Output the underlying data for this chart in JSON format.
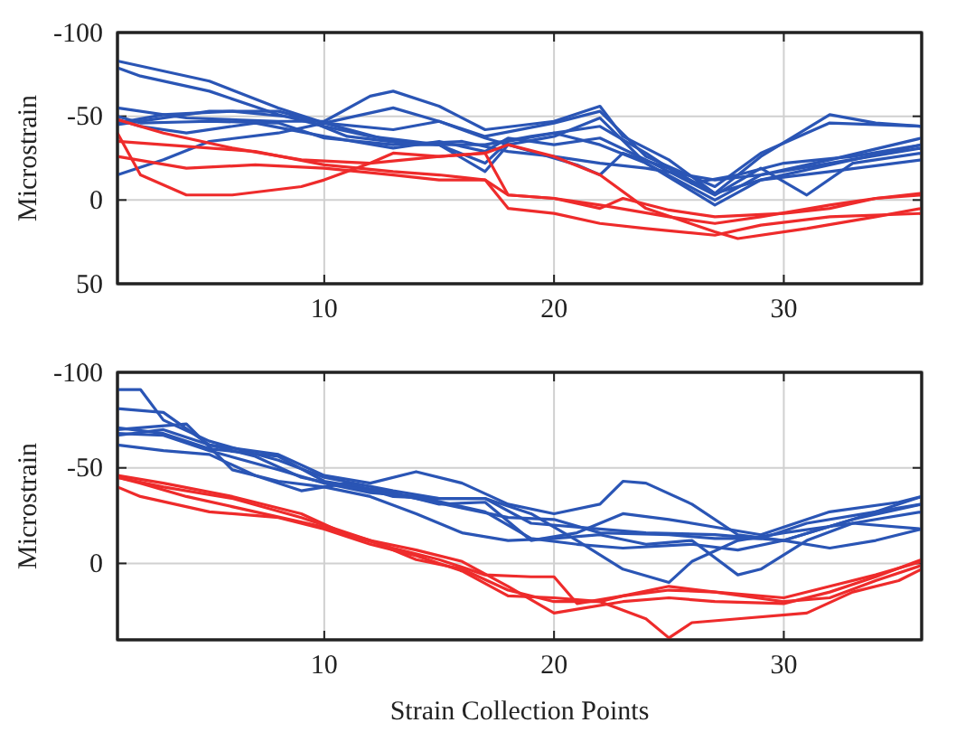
{
  "chart_data": [
    {
      "type": "line",
      "ylabel": "Microstrain",
      "xlim": [
        1,
        36
      ],
      "xticks": [
        10,
        20,
        30
      ],
      "ylim": [
        50,
        -100
      ],
      "yticks": [
        -100,
        -50,
        0,
        50
      ],
      "grid": true,
      "series": [
        {
          "color": "#2a55b5",
          "x": [
            1,
            5,
            8,
            10,
            13,
            15,
            17,
            18,
            20,
            22,
            24,
            27,
            29,
            32,
            36
          ],
          "values": [
            -83,
            -71,
            -55,
            -46,
            -35,
            -33,
            -22,
            -35,
            -40,
            -33,
            -22,
            0,
            -15,
            -22,
            -31
          ]
        },
        {
          "color": "#2a55b5",
          "x": [
            1,
            2,
            5,
            8,
            10,
            12,
            15,
            17,
            18,
            20,
            22,
            24,
            27,
            29,
            32,
            36
          ],
          "values": [
            -79,
            -74,
            -65,
            -51,
            -44,
            -38,
            -33,
            -17,
            -33,
            -38,
            -49,
            -22,
            3,
            -12,
            -17,
            -24
          ]
        },
        {
          "color": "#2a55b5",
          "x": [
            1,
            4,
            8,
            10,
            12,
            13,
            15,
            17,
            20,
            22,
            23,
            25,
            27,
            29,
            32,
            34,
            36
          ],
          "values": [
            -55,
            -49,
            -47,
            -47,
            -62,
            -65,
            -56,
            -42,
            -47,
            -56,
            -38,
            -24,
            -4,
            -26,
            -51,
            -46,
            -44
          ]
        },
        {
          "color": "#2a55b5",
          "x": [
            1,
            5,
            8,
            10,
            13,
            15,
            17,
            20,
            22,
            24,
            27,
            29,
            32,
            36
          ],
          "values": [
            -45,
            -53,
            -53,
            -46,
            -55,
            -47,
            -38,
            -46,
            -53,
            -26,
            -8,
            -28,
            -46,
            -44
          ]
        },
        {
          "color": "#2a55b5",
          "x": [
            1,
            3,
            5,
            8,
            10,
            13,
            15,
            17,
            19,
            21,
            22,
            23,
            25,
            27,
            29,
            32,
            36
          ],
          "values": [
            -15,
            -24,
            -35,
            -40,
            -46,
            -42,
            -47,
            -37,
            -29,
            -21,
            -15,
            -28,
            -19,
            -4,
            -12,
            -21,
            -33
          ]
        },
        {
          "color": "#2a55b5",
          "x": [
            1,
            2,
            4,
            7,
            10,
            13,
            15,
            17,
            18,
            20,
            22,
            24,
            27,
            29,
            31,
            33,
            36
          ],
          "values": [
            -48,
            -44,
            -40,
            -46,
            -38,
            -31,
            -35,
            -29,
            -37,
            -33,
            -37,
            -24,
            -3,
            -19,
            -3,
            -22,
            -28
          ]
        },
        {
          "color": "#2a55b5",
          "x": [
            1,
            2,
            5,
            8,
            10,
            13,
            16,
            18,
            20,
            22,
            24,
            27,
            29,
            32,
            36
          ],
          "values": [
            -50,
            -46,
            -47,
            -46,
            -37,
            -33,
            -35,
            -29,
            -26,
            -22,
            -19,
            -12,
            -15,
            -24,
            -37
          ]
        },
        {
          "color": "#2a55b5",
          "x": [
            1,
            3,
            6,
            9,
            11,
            14,
            17,
            19,
            22,
            24,
            26,
            28,
            30,
            33,
            36
          ],
          "values": [
            -46,
            -51,
            -53,
            -49,
            -38,
            -33,
            -33,
            -38,
            -44,
            -28,
            -10,
            -15,
            -22,
            -26,
            -33
          ]
        },
        {
          "color": "#ee2b2b",
          "x": [
            1,
            3,
            6,
            9,
            12,
            15,
            17,
            18,
            20,
            22,
            24,
            27,
            28,
            31,
            34,
            36
          ],
          "values": [
            -48,
            -40,
            -31,
            -24,
            -22,
            -26,
            -28,
            -33,
            -26,
            -15,
            5,
            19,
            23,
            17,
            10,
            5
          ]
        },
        {
          "color": "#ee2b2b",
          "x": [
            1,
            3,
            7,
            10,
            13,
            15,
            17,
            18,
            20,
            22,
            23,
            25,
            27,
            30,
            32,
            34,
            36
          ],
          "values": [
            -35,
            -33,
            -29,
            -21,
            -17,
            -15,
            -12,
            -3,
            -1,
            5,
            -1,
            6,
            10,
            8,
            5,
            -1,
            -4
          ]
        },
        {
          "color": "#ee2b2b",
          "x": [
            1,
            4,
            7,
            10,
            13,
            15,
            17,
            18,
            20,
            22,
            24,
            27,
            29,
            32,
            36
          ],
          "values": [
            -26,
            -19,
            -21,
            -19,
            -15,
            -12,
            -12,
            5,
            8,
            14,
            17,
            21,
            15,
            10,
            8
          ]
        },
        {
          "color": "#ee2b2b",
          "x": [
            1,
            2,
            4,
            6,
            9,
            10,
            12,
            13,
            15,
            17,
            18,
            20,
            22,
            25,
            27,
            29,
            32,
            34,
            36
          ],
          "values": [
            -40,
            -15,
            -3,
            -3,
            -8,
            -12,
            -22,
            -28,
            -26,
            -28,
            -3,
            -1,
            3,
            10,
            14,
            10,
            3,
            -1,
            -3
          ]
        }
      ]
    },
    {
      "type": "line",
      "xlabel": "Strain Collection Points",
      "ylabel": "Microstrain",
      "xlim": [
        1,
        36
      ],
      "xticks": [
        10,
        20,
        30
      ],
      "ylim": [
        40,
        -100
      ],
      "yticks": [
        -100,
        -50,
        0
      ],
      "grid": true,
      "series": [
        {
          "color": "#2a55b5",
          "x": [
            1,
            2,
            3,
            5,
            8,
            10,
            13,
            15,
            17,
            19,
            22,
            24,
            27,
            30,
            33,
            36
          ],
          "values": [
            -91,
            -91,
            -75,
            -64,
            -54,
            -45,
            -38,
            -34,
            -34,
            -21,
            -18,
            -16,
            -15,
            -12,
            -23,
            -31
          ]
        },
        {
          "color": "#2a55b5",
          "x": [
            1,
            3,
            5,
            8,
            10,
            12,
            14,
            16,
            18,
            20,
            22,
            23,
            24,
            26,
            28,
            30,
            33,
            36
          ],
          "values": [
            -81,
            -79,
            -62,
            -57,
            -46,
            -42,
            -48,
            -42,
            -31,
            -26,
            -31,
            -43,
            -42,
            -31,
            -15,
            -12,
            -23,
            -35
          ]
        },
        {
          "color": "#2a55b5",
          "x": [
            1,
            4,
            6,
            8,
            10,
            12,
            14,
            16,
            18,
            20,
            22,
            24,
            26,
            28,
            29,
            31,
            33,
            36
          ],
          "values": [
            -70,
            -73,
            -49,
            -43,
            -40,
            -35,
            -26,
            -16,
            -12,
            -13,
            -15,
            -10,
            -12,
            6,
            3,
            -12,
            -21,
            -27
          ]
        },
        {
          "color": "#2a55b5",
          "x": [
            1,
            3,
            5,
            7,
            9,
            11,
            13,
            15,
            17,
            19,
            21,
            23,
            25,
            26,
            28,
            30,
            33,
            36
          ],
          "values": [
            -62,
            -59,
            -57,
            -46,
            -38,
            -42,
            -35,
            -34,
            -34,
            -26,
            -12,
            3,
            10,
            -1,
            -12,
            -16,
            -21,
            -18
          ]
        },
        {
          "color": "#2a55b5",
          "x": [
            1,
            3,
            5,
            8,
            10,
            13,
            15,
            17,
            19,
            21,
            23,
            25,
            27,
            29,
            32,
            35,
            36
          ],
          "values": [
            -71,
            -68,
            -60,
            -56,
            -43,
            -37,
            -31,
            -32,
            -12,
            -16,
            -26,
            -23,
            -19,
            -15,
            -27,
            -32,
            -35
          ]
        },
        {
          "color": "#2a55b5",
          "x": [
            1,
            3,
            5,
            8,
            10,
            12,
            14,
            17,
            19,
            21,
            23,
            26,
            28,
            30,
            32,
            34,
            36
          ],
          "values": [
            -68,
            -67,
            -59,
            -49,
            -42,
            -37,
            -35,
            -27,
            -13,
            -10,
            -8,
            -10,
            -7,
            -12,
            -8,
            -12,
            -18
          ]
        },
        {
          "color": "#2a55b5",
          "x": [
            1,
            3,
            5,
            7,
            9,
            11,
            14,
            16,
            18,
            20,
            22,
            25,
            27,
            29,
            31,
            34,
            36
          ],
          "values": [
            -67,
            -70,
            -62,
            -56,
            -45,
            -40,
            -34,
            -29,
            -24,
            -23,
            -16,
            -15,
            -13,
            -13,
            -21,
            -27,
            -31
          ]
        },
        {
          "color": "#ee2b2b",
          "x": [
            1,
            3,
            6,
            9,
            11,
            13,
            15,
            17,
            19,
            20,
            21,
            23,
            25,
            27,
            30,
            32,
            34,
            36
          ],
          "values": [
            -46,
            -42,
            -35,
            -26,
            -15,
            -8,
            -2,
            6,
            7,
            7,
            21,
            17,
            14,
            15,
            18,
            12,
            6,
            -1
          ]
        },
        {
          "color": "#ee2b2b",
          "x": [
            1,
            3,
            6,
            9,
            12,
            14,
            16,
            18,
            20,
            22,
            23,
            25,
            27,
            30,
            32,
            34,
            36
          ],
          "values": [
            -45,
            -40,
            -34,
            -24,
            -12,
            -2,
            3,
            14,
            20,
            20,
            17,
            12,
            15,
            20,
            18,
            9,
            1
          ]
        },
        {
          "color": "#ee2b2b",
          "x": [
            1,
            2,
            4,
            7,
            10,
            12,
            14,
            16,
            18,
            20,
            21,
            23,
            25,
            27,
            30,
            32,
            34,
            36
          ],
          "values": [
            -45,
            -42,
            -35,
            -27,
            -19,
            -12,
            -7,
            -1,
            12,
            26,
            24,
            20,
            18,
            20,
            21,
            15,
            7,
            -2
          ]
        },
        {
          "color": "#ee2b2b",
          "x": [
            1,
            2,
            5,
            8,
            10,
            12,
            14,
            16,
            18,
            20,
            22,
            24,
            25,
            26,
            28,
            31,
            33,
            35,
            36
          ],
          "values": [
            -40,
            -35,
            -27,
            -24,
            -18,
            -10,
            -4,
            4,
            17,
            18,
            20,
            29,
            39,
            31,
            29,
            26,
            15,
            9,
            3
          ]
        }
      ]
    }
  ]
}
